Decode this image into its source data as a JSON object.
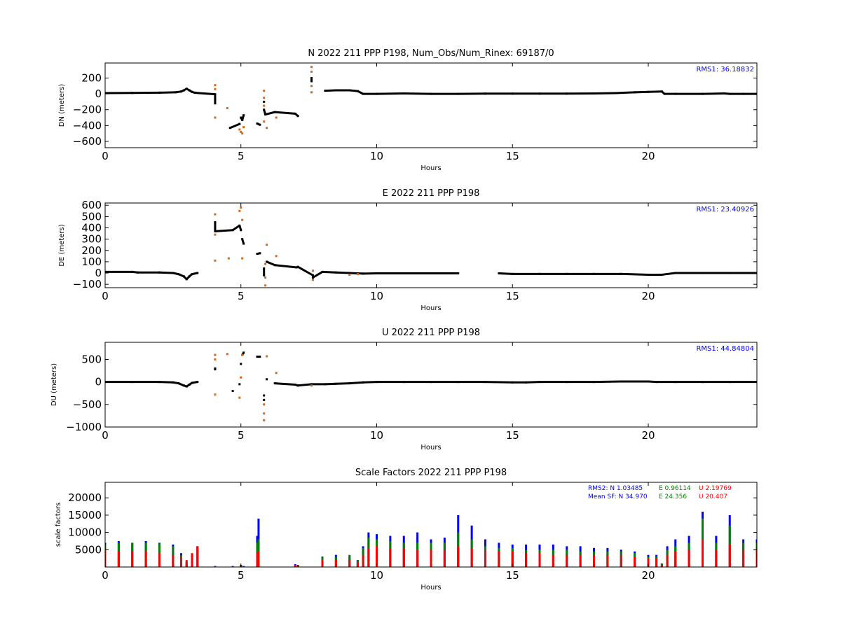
{
  "chart_data": [
    {
      "type": "scatter",
      "title": "N 2022 211 PPP  P198, Num_Obs/Num_Rinex: 69187/0",
      "xlabel": "Hours",
      "ylabel": "DN (meters)",
      "xlim": [
        0,
        24
      ],
      "ylim": [
        -680,
        390
      ],
      "xticks": [
        0,
        5,
        10,
        15,
        20
      ],
      "xtick_labels": [
        "0",
        "5",
        "10",
        "15",
        "20"
      ],
      "yticks": [
        200,
        0,
        -200,
        -400,
        -600
      ],
      "ytick_labels": [
        "200",
        "0",
        "−200",
        "−400",
        "−600"
      ],
      "annotation": "RMS1: 36.18832",
      "series": [
        {
          "color": "#000000",
          "x": [
            0,
            1,
            2,
            2.6,
            2.8,
            2.9,
            3.0,
            3.1,
            3.2,
            3.3,
            3.45,
            4.05,
            4.05,
            4.05,
            4.6,
            4.95,
            5.0,
            5.05,
            5.1,
            5.6,
            5.7,
            5.85,
            5.85,
            5.9,
            6.25,
            7.0,
            7.1,
            7.6,
            7.6,
            8.1,
            8.5,
            9.0,
            9.3,
            9.5,
            10.0,
            11.0,
            12.0,
            13.0,
            14.0,
            15.0,
            16.0,
            17.0,
            18.0,
            18.8,
            19.5,
            20.0,
            20.5,
            20.6,
            21.0,
            22.0,
            22.8,
            23.0,
            23.5,
            24.0
          ],
          "y": [
            10,
            12,
            15,
            20,
            30,
            45,
            65,
            45,
            25,
            15,
            10,
            -5,
            -70,
            -120,
            -430,
            -380,
            -300,
            -330,
            -270,
            -375,
            -390,
            -100,
            -200,
            -260,
            -230,
            -250,
            -280,
            200,
            160,
            40,
            45,
            45,
            35,
            0,
            0,
            5,
            0,
            0,
            3,
            3,
            3,
            3,
            5,
            10,
            20,
            25,
            30,
            0,
            0,
            0,
            5,
            0,
            0,
            0
          ]
        },
        {
          "color": "#d2691e",
          "x": [
            4.05,
            4.05,
            4.05,
            4.5,
            4.95,
            5.0,
            5.05,
            5.1,
            5.85,
            5.85,
            5.85,
            5.85,
            5.95,
            6.3,
            7.6,
            7.6,
            7.6,
            7.6
          ],
          "y": [
            110,
            60,
            -300,
            -180,
            -450,
            -480,
            -500,
            -420,
            40,
            -50,
            -150,
            -350,
            -430,
            -300,
            340,
            280,
            100,
            20
          ]
        }
      ]
    },
    {
      "type": "scatter",
      "title": "E 2022 211 PPP  P198",
      "xlabel": "Hours",
      "ylabel": "DE (meters)",
      "xlim": [
        0,
        24
      ],
      "ylim": [
        -130,
        620
      ],
      "xticks": [
        0,
        5,
        10,
        15,
        20
      ],
      "xtick_labels": [
        "0",
        "5",
        "10",
        "15",
        "20"
      ],
      "yticks": [
        600,
        500,
        400,
        300,
        200,
        100,
        0,
        -100
      ],
      "ytick_labels": [
        "600",
        "500",
        "400",
        "300",
        "200",
        "100",
        "0",
        "−100"
      ],
      "annotation": "RMS1: 23.40926",
      "series": [
        {
          "color": "#000000",
          "x": [
            0,
            1,
            1.2,
            2,
            2.5,
            2.7,
            2.9,
            3.0,
            3.1,
            3.2,
            3.4,
            4.05,
            4.05,
            4.05,
            4.7,
            4.95,
            5.0,
            5.05,
            5.1,
            5.6,
            5.7,
            5.85,
            5.85,
            5.95,
            6.25,
            7.05,
            7.1,
            7.65,
            7.65,
            8.0,
            8.5,
            9.0,
            9.5,
            10.0,
            11.0,
            12.0,
            13.0,
            14.5,
            15.0,
            16.0,
            17.0,
            18.0,
            19.0,
            20.0,
            20.5,
            21.0,
            22.0,
            23.0,
            24.0
          ],
          "y": [
            10,
            10,
            5,
            5,
            0,
            -10,
            -30,
            -55,
            -30,
            -10,
            0,
            450,
            400,
            370,
            380,
            420,
            380,
            300,
            260,
            170,
            175,
            40,
            -20,
            100,
            70,
            50,
            55,
            -20,
            -40,
            10,
            5,
            0,
            -5,
            -3,
            -3,
            -3,
            -3,
            -3,
            -8,
            -8,
            -8,
            -8,
            -8,
            -15,
            -15,
            0,
            0,
            0,
            0
          ]
        },
        {
          "color": "#d2691e",
          "x": [
            4.05,
            4.05,
            4.05,
            4.55,
            4.95,
            5.0,
            5.05,
            5.05,
            5.9,
            5.9,
            5.9,
            5.95,
            6.3,
            7.65,
            7.65,
            9.0,
            9.3
          ],
          "y": [
            520,
            110,
            340,
            130,
            550,
            580,
            470,
            130,
            -110,
            -40,
            80,
            250,
            150,
            20,
            -60,
            -15,
            -10
          ]
        }
      ]
    },
    {
      "type": "scatter",
      "title": "U 2022 211 PPP  P198",
      "xlabel": "Hours",
      "ylabel": "DU (meters)",
      "xlim": [
        0,
        24
      ],
      "ylim": [
        -1000,
        880
      ],
      "xticks": [
        0,
        5,
        10,
        15,
        20
      ],
      "xtick_labels": [
        "0",
        "5",
        "10",
        "15",
        "20"
      ],
      "yticks": [
        500,
        0,
        -500,
        -1000
      ],
      "ytick_labels": [
        "500",
        "0",
        "−500",
        "−1000"
      ],
      "annotation": "RMS1: 44.84804",
      "series": [
        {
          "color": "#000000",
          "x": [
            0,
            1,
            2,
            2.5,
            2.7,
            2.9,
            3.0,
            3.1,
            3.2,
            3.4,
            4.05,
            4.05,
            4.7,
            4.95,
            5.0,
            5.05,
            5.1,
            5.6,
            5.7,
            5.85,
            5.85,
            5.95,
            6.25,
            7.0,
            7.1,
            7.6,
            8.1,
            8.5,
            9.0,
            9.5,
            10.0,
            11.0,
            12.0,
            13.0,
            14.0,
            15.0,
            15.5,
            16.0,
            17.0,
            18.0,
            19.0,
            20.0,
            20.3,
            21.0,
            22.0,
            23.0,
            24.0
          ],
          "y": [
            0,
            0,
            0,
            -10,
            -30,
            -80,
            -100,
            -60,
            -20,
            0,
            300,
            280,
            -200,
            -50,
            400,
            600,
            650,
            560,
            560,
            -300,
            -400,
            60,
            -30,
            -60,
            -80,
            -50,
            -50,
            -40,
            -30,
            -10,
            0,
            0,
            0,
            0,
            0,
            -10,
            -10,
            0,
            0,
            0,
            10,
            10,
            0,
            0,
            0,
            0,
            0
          ]
        },
        {
          "color": "#d2691e",
          "x": [
            4.05,
            4.05,
            4.05,
            4.5,
            4.95,
            5.0,
            5.05,
            5.85,
            5.85,
            5.85,
            5.95,
            6.3,
            7.6
          ],
          "y": [
            600,
            500,
            -280,
            620,
            -350,
            100,
            600,
            -850,
            -700,
            -500,
            570,
            200,
            -80
          ]
        }
      ]
    },
    {
      "type": "scatter",
      "title": "Scale Factors 2022 211 PPP  P198",
      "xlabel": "Hours",
      "ylabel": "scale factors",
      "xlim": [
        0,
        24
      ],
      "ylim": [
        0,
        24500
      ],
      "xticks": [
        0,
        5,
        10,
        15,
        20
      ],
      "xtick_labels": [
        "0",
        "5",
        "10",
        "15",
        "20"
      ],
      "yticks": [
        20000,
        15000,
        10000,
        5000
      ],
      "ytick_labels": [
        "20000",
        "15000",
        "10000",
        "5000"
      ],
      "stats_lines": [
        {
          "label": "RMS2: N  1.03485",
          "e": "E  0.96114",
          "u": "U  2.19769"
        },
        {
          "label": "Mean SF: N  34.970",
          "e": "E  24.356",
          "u": "U  20.407"
        }
      ],
      "series": [
        {
          "name": "N",
          "color": "#0000ff",
          "x": [
            0,
            0.5,
            1.0,
            1.5,
            2.0,
            2.5,
            2.8,
            3.0,
            3.2,
            3.4,
            4.05,
            4.7,
            5.0,
            5.1,
            5.6,
            5.65,
            7.0,
            7.1,
            8.0,
            8.5,
            9.0,
            9.3,
            9.5,
            9.7,
            10.0,
            10.5,
            11.0,
            11.5,
            12.0,
            12.5,
            13.0,
            13.5,
            14.0,
            14.5,
            15.0,
            15.5,
            16.0,
            16.5,
            17.0,
            17.5,
            18.0,
            18.5,
            19.0,
            19.5,
            20.0,
            20.3,
            20.5,
            20.7,
            21.0,
            21.5,
            22.0,
            22.5,
            23.0,
            23.5,
            24.0
          ],
          "y": [
            7000,
            7500,
            7000,
            7500,
            7000,
            6500,
            4000,
            1500,
            3000,
            6000,
            300,
            300,
            600,
            300,
            9000,
            14000,
            800,
            600,
            3000,
            3500,
            3000,
            2000,
            6000,
            10000,
            9500,
            9000,
            9000,
            10000,
            8000,
            8500,
            15000,
            12000,
            8000,
            7000,
            6500,
            6500,
            6500,
            6500,
            6000,
            6000,
            5500,
            5500,
            5000,
            4500,
            3500,
            3500,
            1000,
            6000,
            8000,
            9000,
            16000,
            9000,
            15000,
            8000,
            8000
          ]
        },
        {
          "name": "E",
          "color": "#008000",
          "x": [
            0,
            0.5,
            1.0,
            1.5,
            2.0,
            2.5,
            2.8,
            3.0,
            3.2,
            3.4,
            4.05,
            4.7,
            5.0,
            5.1,
            5.6,
            5.65,
            7.0,
            7.1,
            8.0,
            8.5,
            9.0,
            9.3,
            9.5,
            9.7,
            10.0,
            10.5,
            11.0,
            11.5,
            12.0,
            12.5,
            13.0,
            13.5,
            14.0,
            14.5,
            15.0,
            15.5,
            16.0,
            16.5,
            17.0,
            17.5,
            18.0,
            18.5,
            19.0,
            19.5,
            20.0,
            20.3,
            20.5,
            20.7,
            21.0,
            21.5,
            22.0,
            22.5,
            23.0,
            23.5,
            24.0
          ],
          "y": [
            6500,
            7000,
            7000,
            7000,
            6800,
            6000,
            3500,
            1200,
            2500,
            5500,
            200,
            200,
            400,
            200,
            7000,
            8000,
            600,
            400,
            2800,
            3000,
            3500,
            2000,
            5500,
            8500,
            8000,
            7500,
            7000,
            7000,
            7000,
            7000,
            10000,
            8000,
            6000,
            5500,
            5500,
            5000,
            5000,
            5000,
            5000,
            4500,
            4500,
            4500,
            4500,
            4000,
            3000,
            3000,
            800,
            5000,
            6000,
            7000,
            14000,
            7000,
            12000,
            7000,
            7000
          ]
        },
        {
          "name": "U",
          "color": "#ff0000",
          "x": [
            0,
            0.5,
            1.0,
            1.5,
            2.0,
            2.5,
            2.8,
            3.0,
            3.2,
            3.4,
            4.05,
            4.7,
            5.0,
            5.1,
            5.6,
            5.65,
            7.0,
            7.1,
            8.0,
            8.5,
            9.0,
            9.3,
            9.5,
            9.7,
            10.0,
            10.5,
            11.0,
            11.5,
            12.0,
            12.5,
            13.0,
            13.5,
            14.0,
            14.5,
            15.0,
            15.5,
            16.0,
            16.5,
            17.0,
            17.5,
            18.0,
            18.5,
            19.0,
            19.5,
            20.0,
            20.3,
            20.5,
            20.7,
            21.0,
            21.5,
            22.0,
            22.5,
            23.0,
            23.5,
            24.0
          ],
          "y": [
            5000,
            4500,
            4500,
            4500,
            4000,
            3500,
            3000,
            2000,
            4000,
            6000,
            100,
            100,
            300,
            100,
            4000,
            4500,
            400,
            300,
            2000,
            2000,
            2000,
            1500,
            3500,
            5500,
            6000,
            5500,
            5500,
            5000,
            5000,
            5000,
            6000,
            5500,
            5000,
            4500,
            4500,
            4000,
            4000,
            3500,
            3500,
            3500,
            3500,
            3500,
            3500,
            3000,
            2500,
            2500,
            500,
            3500,
            4500,
            5000,
            8000,
            5000,
            6500,
            5000,
            5000
          ]
        }
      ]
    }
  ]
}
